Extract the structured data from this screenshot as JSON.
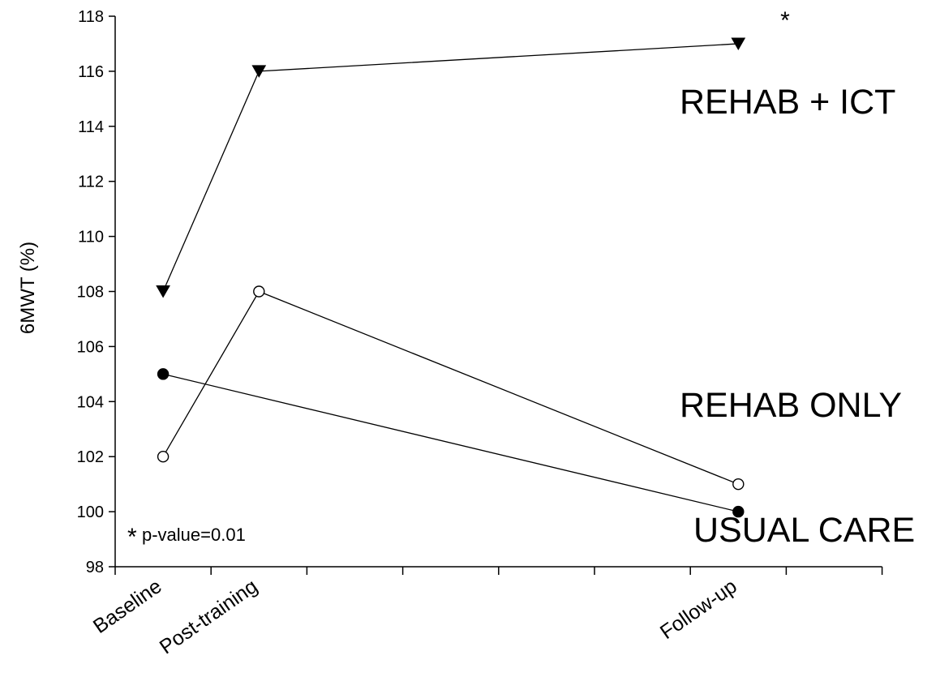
{
  "chart_data": {
    "type": "line",
    "x": [
      "Baseline",
      "Post-training",
      "",
      "",
      "",
      "",
      "Follow-up",
      ""
    ],
    "ylabel": "6MWT (%)",
    "ylim": [
      98,
      118
    ],
    "yticks": [
      98,
      100,
      102,
      104,
      106,
      108,
      110,
      112,
      114,
      116,
      118
    ],
    "yticks_text": [
      "98",
      "100",
      "102",
      "104",
      "106",
      "108",
      "110",
      "112",
      "114",
      "116",
      "118"
    ],
    "category_labels": [
      "Baseline",
      "Post-training",
      "Follow-up"
    ],
    "series": [
      {
        "name": "REHAB + ICT",
        "marker": "filled-triangle-down",
        "x": [
          0,
          1,
          6
        ],
        "values": [
          108,
          116,
          117
        ]
      },
      {
        "name": "REHAB ONLY",
        "marker": "open-circle",
        "x": [
          0,
          1,
          6
        ],
        "values": [
          102,
          108,
          101
        ]
      },
      {
        "name": "USUAL CARE",
        "marker": "filled-circle",
        "x": [
          0,
          6
        ],
        "values": [
          105,
          100
        ]
      }
    ],
    "annotations": {
      "significance_star": "*",
      "footnote_star": "*",
      "footnote_text": "p-value=0.01"
    },
    "grid": false,
    "legend": "inline-right"
  }
}
